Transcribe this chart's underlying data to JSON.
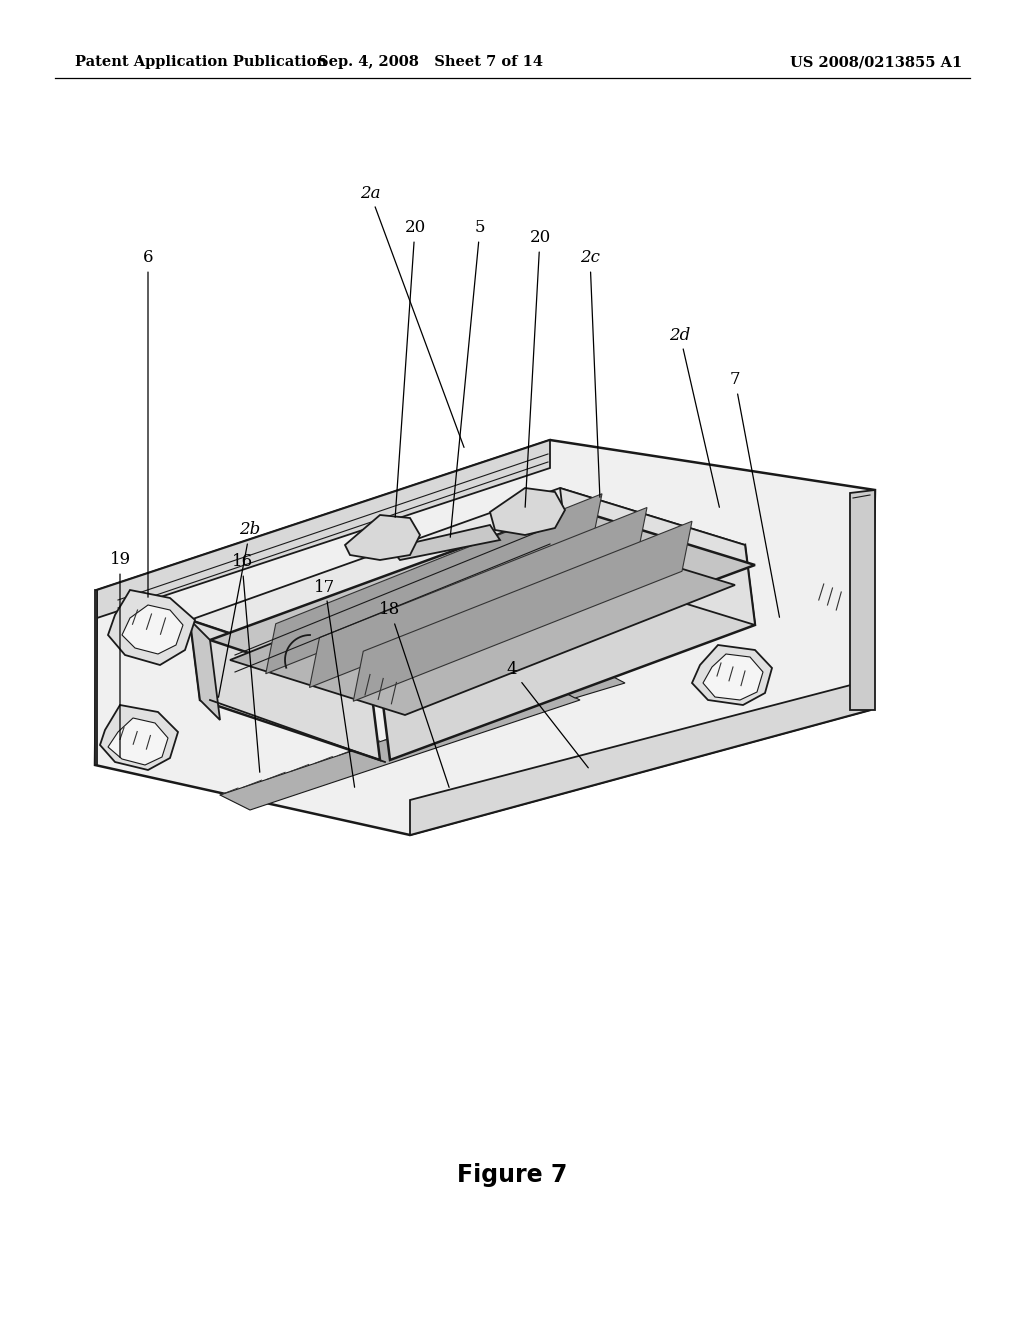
{
  "background_color": "#ffffff",
  "header_left": "Patent Application Publication",
  "header_mid": "Sep. 4, 2008   Sheet 7 of 14",
  "header_right": "US 2008/0213855 A1",
  "figure_label": "Figure 7",
  "header_fontsize": 10.5,
  "figure_label_fontsize": 17,
  "page_width": 10.24,
  "page_height": 13.2,
  "dpi": 100
}
